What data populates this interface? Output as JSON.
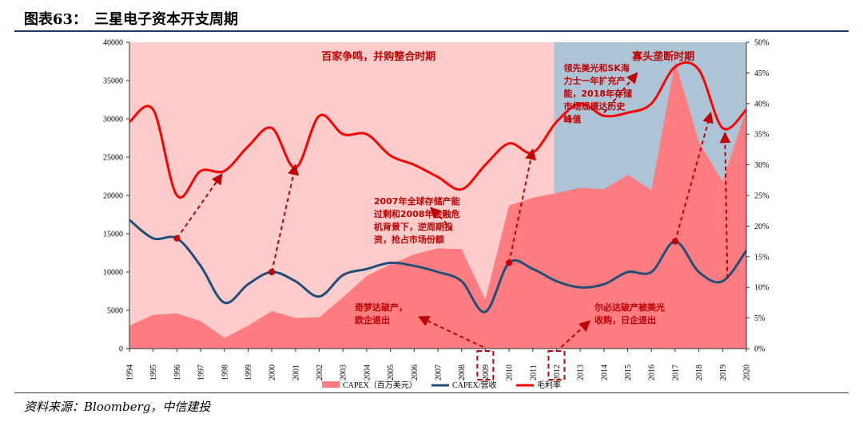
{
  "figure": {
    "label": "图表63：",
    "title": "三星电子资本开支周期",
    "source": "资料来源：Bloomberg，中信建投"
  },
  "chart_data": {
    "type": "area+line",
    "x": [
      1994,
      1995,
      1996,
      1997,
      1998,
      1999,
      2000,
      2001,
      2002,
      2003,
      2004,
      2005,
      2006,
      2007,
      2008,
      2009,
      2010,
      2011,
      2012,
      2013,
      2014,
      2015,
      2016,
      2017,
      2018,
      2019,
      2020
    ],
    "left_axis": {
      "ylim": [
        0,
        40000
      ],
      "ticks": [
        0,
        5000,
        10000,
        15000,
        20000,
        25000,
        30000,
        35000,
        40000
      ]
    },
    "right_axis": {
      "ylim": [
        0,
        50
      ],
      "ticks": [
        "0%",
        "5%",
        "10%",
        "15%",
        "20%",
        "25%",
        "30%",
        "35%",
        "40%",
        "45%",
        "50%"
      ]
    },
    "series": [
      {
        "name": "CAPEX（百万美元）",
        "axis": "left",
        "kind": "area",
        "values": [
          3000,
          4400,
          4600,
          3600,
          1400,
          3000,
          4900,
          4000,
          4100,
          6700,
          9500,
          11000,
          12300,
          13100,
          13000,
          6400,
          18700,
          19700,
          20300,
          21000,
          20800,
          22700,
          20700,
          37500,
          27000,
          21800,
          31300
        ]
      },
      {
        "name": "CAPEX/营收",
        "axis": "right",
        "kind": "line",
        "values": [
          21,
          18,
          18,
          13.5,
          7.5,
          10.5,
          12.5,
          11,
          8.5,
          12,
          13,
          14,
          13.5,
          12.5,
          11,
          6,
          14,
          13,
          11,
          10,
          10.5,
          12.5,
          12.5,
          17.5,
          12.5,
          11,
          16
        ]
      },
      {
        "name": "毛利率",
        "axis": "right",
        "kind": "line",
        "values": [
          37,
          39,
          25,
          29,
          29,
          33,
          36,
          29.5,
          38,
          35,
          35,
          31.5,
          30,
          28,
          26,
          30,
          33.5,
          32,
          37,
          40,
          38,
          38.5,
          40,
          46,
          45.5,
          36,
          39
        ]
      }
    ],
    "eras": [
      {
        "label": "百家争鸣，并购整合时期",
        "from": 1993.9,
        "to": 2011.9
      },
      {
        "label": "寡头垄断时期",
        "from": 2011.9,
        "to": 2020
      }
    ],
    "annotations": [
      {
        "lines": [
          "2007年全球存储产能",
          "过剩和2008年金融危",
          "机背景下，逆周期投",
          "资，抢占市场份额"
        ]
      },
      {
        "lines": [
          "奇梦达破产，",
          "欧企退出"
        ]
      },
      {
        "lines": [
          "尔必达破产被美光",
          "收购，日企退出"
        ]
      },
      {
        "lines": [
          "领先美光和SK海",
          "力士一年扩充产",
          "能，2018年存储",
          "市场规模达历史",
          "峰值"
        ]
      }
    ],
    "colors": {
      "area": "#ff7c80",
      "era1": "#ffcccc",
      "era2": "#adc3d6",
      "ratio": "#1f4e79",
      "margin": "#ff0000",
      "annotation": "#c00000"
    },
    "legend_placement": "bottom"
  }
}
